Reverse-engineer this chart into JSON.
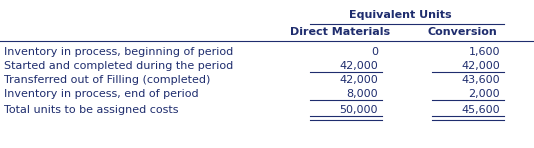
{
  "header_group": "Equivalent Units",
  "col1_header": "Direct Materials",
  "col2_header": "Conversion",
  "rows": [
    {
      "label": "Inventory in process, beginning of period",
      "dm": "0",
      "conv": "1,600",
      "ul_dm": false,
      "ul_conv": false,
      "double_dm": false,
      "double_conv": false
    },
    {
      "label": "Started and completed during the period",
      "dm": "42,000",
      "conv": "42,000",
      "ul_dm": true,
      "ul_conv": true,
      "double_dm": false,
      "double_conv": false
    },
    {
      "label": "Transferred out of Filling (completed)",
      "dm": "42,000",
      "conv": "43,600",
      "ul_dm": false,
      "ul_conv": false,
      "double_dm": false,
      "double_conv": false
    },
    {
      "label": "Inventory in process, end of period",
      "dm": "8,000",
      "conv": "2,000",
      "ul_dm": true,
      "ul_conv": true,
      "double_dm": false,
      "double_conv": false
    },
    {
      "label": "Total units to be assigned costs",
      "dm": "50,000",
      "conv": "45,600",
      "ul_dm": false,
      "ul_conv": false,
      "double_dm": true,
      "double_conv": true
    }
  ],
  "bg_color": "#ffffff",
  "text_color": "#1f2d6e",
  "font_size": 8.0,
  "header_font_size": 8.0
}
